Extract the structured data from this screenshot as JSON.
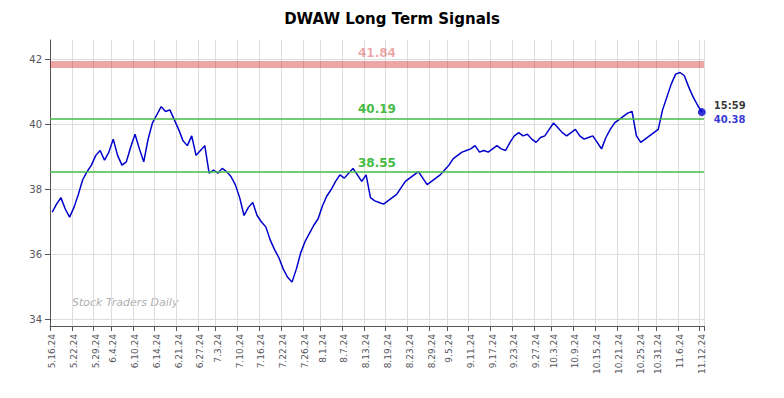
{
  "chart_data": {
    "type": "line",
    "title": "DWAW Long Term Signals",
    "color": "#0000cc",
    "categories": [
      "5.16.24",
      null,
      null,
      null,
      null,
      "5.22.24",
      null,
      null,
      null,
      null,
      "5.29.24",
      null,
      null,
      null,
      "6.4.24",
      null,
      null,
      null,
      null,
      "6.10.24",
      null,
      null,
      null,
      null,
      "6.14.24",
      null,
      null,
      null,
      null,
      "6.21.24",
      null,
      null,
      null,
      null,
      "6.27.24",
      null,
      null,
      null,
      "7.3.24",
      null,
      null,
      null,
      null,
      "7.10.24",
      null,
      null,
      null,
      null,
      "7.16.24",
      null,
      null,
      null,
      null,
      "7.22.24",
      null,
      null,
      null,
      null,
      "7.26.24",
      null,
      null,
      null,
      "8.1.24",
      null,
      null,
      null,
      null,
      "8.7.24",
      null,
      null,
      null,
      null,
      "8.13.24",
      null,
      null,
      null,
      null,
      "8.19.24",
      null,
      null,
      null,
      null,
      "8.23.24",
      null,
      null,
      null,
      null,
      "8.29.24",
      null,
      null,
      null,
      "9.5.24",
      null,
      null,
      null,
      null,
      "9.11.24",
      null,
      null,
      null,
      null,
      "9.17.24",
      null,
      null,
      null,
      null,
      "9.23.24",
      null,
      null,
      null,
      null,
      "9.27.24",
      null,
      null,
      null,
      "10.3.24",
      null,
      null,
      null,
      null,
      "10.9.24",
      null,
      null,
      null,
      null,
      "10.15.24",
      null,
      null,
      null,
      null,
      "10.21.24",
      null,
      null,
      null,
      null,
      "10.25.24",
      null,
      null,
      null,
      "10.31.24",
      null,
      null,
      null,
      null,
      "11.6.24",
      null,
      null,
      null,
      null,
      "11.12.24"
    ],
    "values": [
      37.3,
      37.55,
      37.75,
      37.4,
      37.15,
      37.45,
      37.85,
      38.3,
      38.55,
      38.75,
      39.05,
      39.2,
      38.9,
      39.15,
      39.55,
      39.05,
      38.75,
      38.85,
      39.3,
      39.7,
      39.25,
      38.85,
      39.55,
      40.05,
      40.3,
      40.55,
      40.4,
      40.45,
      40.15,
      39.85,
      39.5,
      39.35,
      39.65,
      39.05,
      39.2,
      39.35,
      38.5,
      38.6,
      38.5,
      38.65,
      38.55,
      38.4,
      38.15,
      37.75,
      37.2,
      37.45,
      37.6,
      37.2,
      37.0,
      36.85,
      36.45,
      36.15,
      35.9,
      35.55,
      35.3,
      35.15,
      35.55,
      36.05,
      36.4,
      36.65,
      36.9,
      37.1,
      37.5,
      37.8,
      38.0,
      38.25,
      38.45,
      38.35,
      38.5,
      38.65,
      38.45,
      38.25,
      38.45,
      37.75,
      37.65,
      37.6,
      37.55,
      37.65,
      37.75,
      37.85,
      38.05,
      38.25,
      38.35,
      38.45,
      38.55,
      38.35,
      38.15,
      38.25,
      38.35,
      38.45,
      38.6,
      38.75,
      38.95,
      39.05,
      39.15,
      39.2,
      39.25,
      39.35,
      39.15,
      39.2,
      39.15,
      39.25,
      39.35,
      39.25,
      39.2,
      39.45,
      39.65,
      39.75,
      39.65,
      39.7,
      39.55,
      39.45,
      39.6,
      39.65,
      39.85,
      40.05,
      39.9,
      39.75,
      39.65,
      39.75,
      39.85,
      39.65,
      39.55,
      39.6,
      39.65,
      39.45,
      39.25,
      39.6,
      39.85,
      40.05,
      40.15,
      40.25,
      40.35,
      40.4,
      39.65,
      39.45,
      39.55,
      39.65,
      39.75,
      39.85,
      40.45,
      40.85,
      41.25,
      41.55,
      41.6,
      41.5,
      41.15,
      40.85,
      40.6,
      40.38
    ],
    "ylim": [
      33.8,
      42.6
    ],
    "yticks": [
      34,
      36,
      38,
      40,
      42
    ],
    "grid": true,
    "reference_lines": [
      {
        "y": 41.84,
        "label": "41.84",
        "color": "#cc0000",
        "line_style": "band"
      },
      {
        "y": 40.19,
        "label": "40.19",
        "color": "#44bb44",
        "line_style": "solid"
      },
      {
        "y": 38.55,
        "label": "38.55",
        "color": "#44bb44",
        "line_style": "solid"
      }
    ],
    "annotations": [
      {
        "text": "15:59",
        "color": "#000000"
      },
      {
        "text": "40.38",
        "color": "#0000cc"
      }
    ],
    "watermark": "Stock Traders Daily"
  }
}
